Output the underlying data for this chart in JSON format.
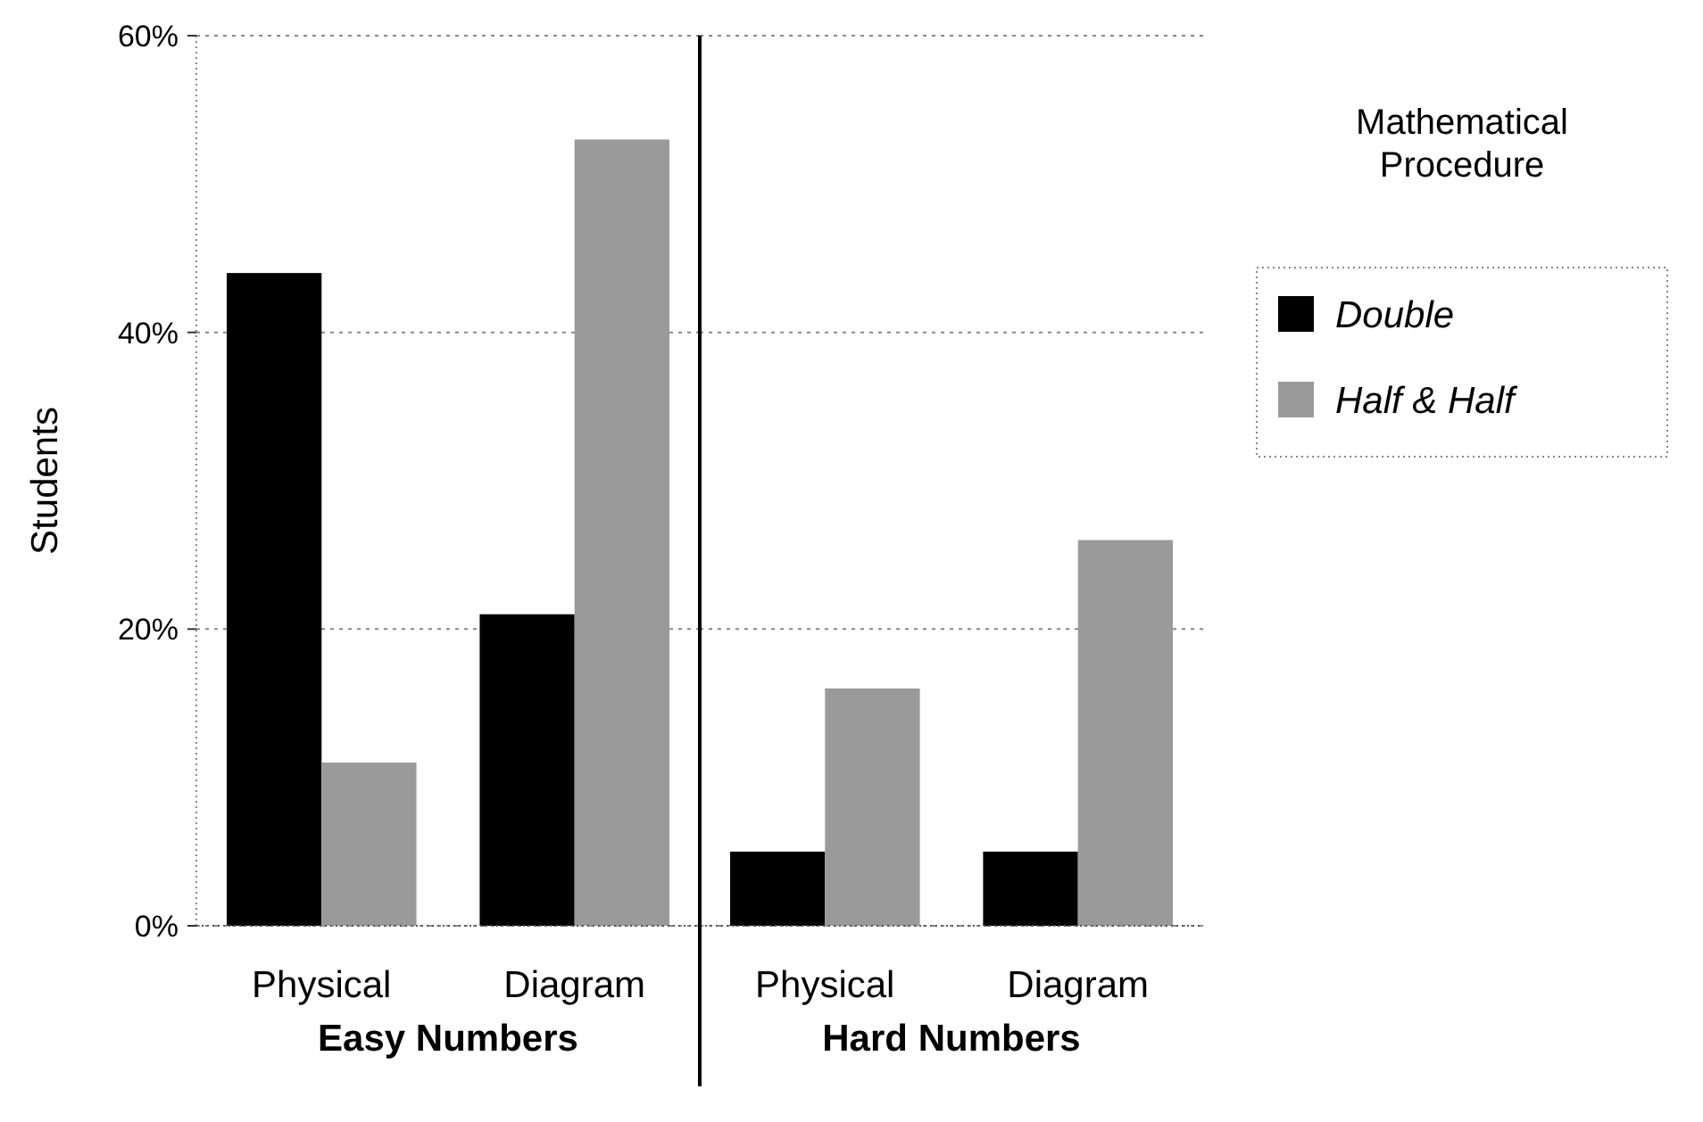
{
  "chart_data": [
    {
      "type": "bar",
      "ylabel": "Students",
      "xlabel": "Easy Numbers",
      "categories": [
        "Physical",
        "Diagram"
      ],
      "series": [
        {
          "color": "#000000",
          "values": [
            44,
            21
          ]
        },
        {
          "color": "#9a9a9a",
          "values": [
            11,
            53
          ]
        }
      ],
      "ylim": [
        0,
        60
      ],
      "yticks": [
        {
          "value": 0,
          "label": "0%"
        },
        {
          "value": 20,
          "label": "20%"
        },
        {
          "value": 40,
          "label": "40%"
        },
        {
          "value": 60,
          "label": "60%"
        }
      ],
      "grid": "y",
      "legend": false
    },
    {
      "type": "bar",
      "xlabel": "Hard Numbers",
      "legend_title": "Mathematical Procedure",
      "categories": [
        "Physical",
        "Diagram"
      ],
      "series": [
        {
          "name": "Double",
          "color": "#000000",
          "values": [
            5,
            5
          ]
        },
        {
          "name": "Half & Half",
          "color": "#9a9a9a",
          "values": [
            16,
            26
          ]
        }
      ],
      "ylim": [
        0,
        60
      ],
      "yticks": [
        0,
        20,
        40,
        60
      ],
      "grid": "y",
      "legend": "right",
      "tick_labels": "x"
    }
  ]
}
